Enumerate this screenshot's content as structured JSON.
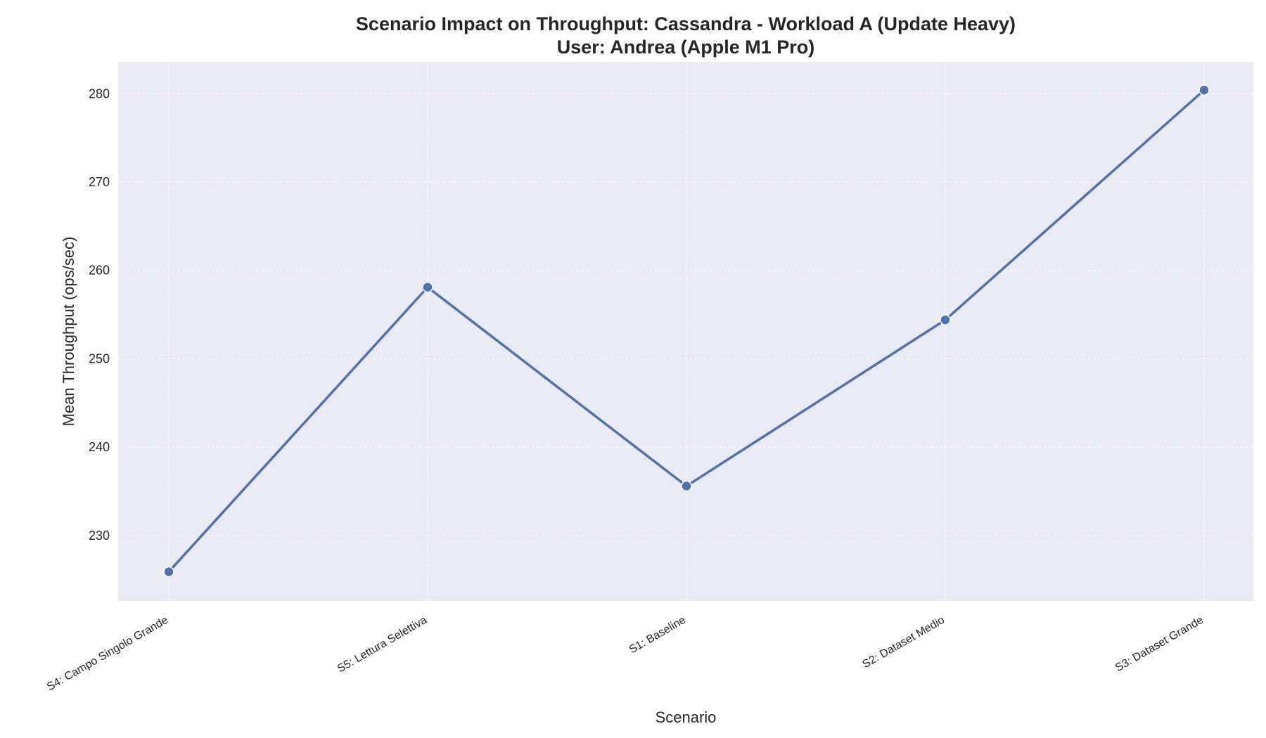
{
  "chart_data": {
    "type": "line",
    "title": "Scenario Impact on Throughput: Cassandra - Workload A (Update Heavy)",
    "subtitle": "User: Andrea (Apple M1 Pro)",
    "xlabel": "Scenario",
    "ylabel": "Mean Throughput (ops/sec)",
    "categories": [
      "S4: Campo Singolo Grande",
      "S5: Lettura Selettiva",
      "S1: Baseline",
      "S2: Dataset Medio",
      "S3: Dataset Grande"
    ],
    "values": [
      225.9,
      258.1,
      235.6,
      254.4,
      280.4
    ],
    "yticks": [
      230,
      240,
      250,
      260,
      270,
      280
    ],
    "ylim": [
      222.6,
      283.6
    ],
    "grid": true,
    "line_color": "#4c72b0",
    "background_color": "#eaeaf2"
  }
}
